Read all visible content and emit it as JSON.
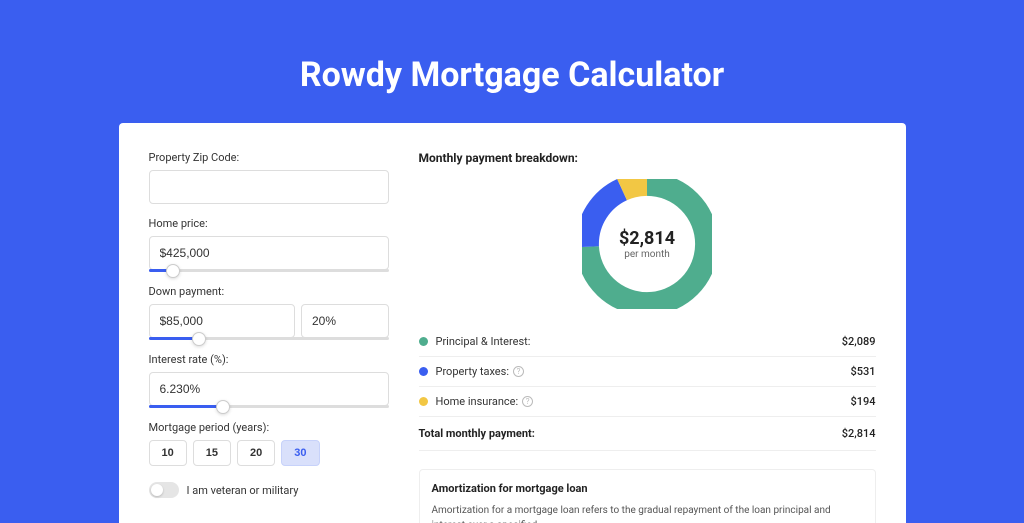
{
  "page": {
    "title": "Rowdy Mortgage Calculator",
    "background_color": "#3a5ef0"
  },
  "form": {
    "zip": {
      "label": "Property Zip Code:",
      "value": ""
    },
    "home_price": {
      "label": "Home price:",
      "value": "$425,000",
      "slider_pct": 10
    },
    "down_payment": {
      "label": "Down payment:",
      "value": "$85,000",
      "percent_value": "20%",
      "slider_pct": 21
    },
    "interest_rate": {
      "label": "Interest rate (%):",
      "value": "6.230%",
      "slider_pct": 31
    },
    "period": {
      "label": "Mortgage period (years):",
      "options": [
        "10",
        "15",
        "20",
        "30"
      ],
      "selected": "30"
    },
    "veteran": {
      "label": "I am veteran or military",
      "checked": false
    }
  },
  "breakdown": {
    "title": "Monthly payment breakdown:",
    "center_amount": "$2,814",
    "center_sub": "per month",
    "donut": {
      "segments": [
        {
          "key": "principal_interest",
          "value": 2089,
          "color": "#4fad8e"
        },
        {
          "key": "property_taxes",
          "value": 531,
          "color": "#3a5ef0"
        },
        {
          "key": "home_insurance",
          "value": 194,
          "color": "#f2c744"
        }
      ],
      "stroke_width": 18,
      "radius": 46
    },
    "items": [
      {
        "label": "Principal & Interest:",
        "value": "$2,089",
        "color": "#4fad8e",
        "info": false
      },
      {
        "label": "Property taxes:",
        "value": "$531",
        "color": "#3a5ef0",
        "info": true
      },
      {
        "label": "Home insurance:",
        "value": "$194",
        "color": "#f2c744",
        "info": true
      }
    ],
    "total": {
      "label": "Total monthly payment:",
      "value": "$2,814"
    }
  },
  "amortization": {
    "title": "Amortization for mortgage loan",
    "text": "Amortization for a mortgage loan refers to the gradual repayment of the loan principal and interest over a specified"
  }
}
